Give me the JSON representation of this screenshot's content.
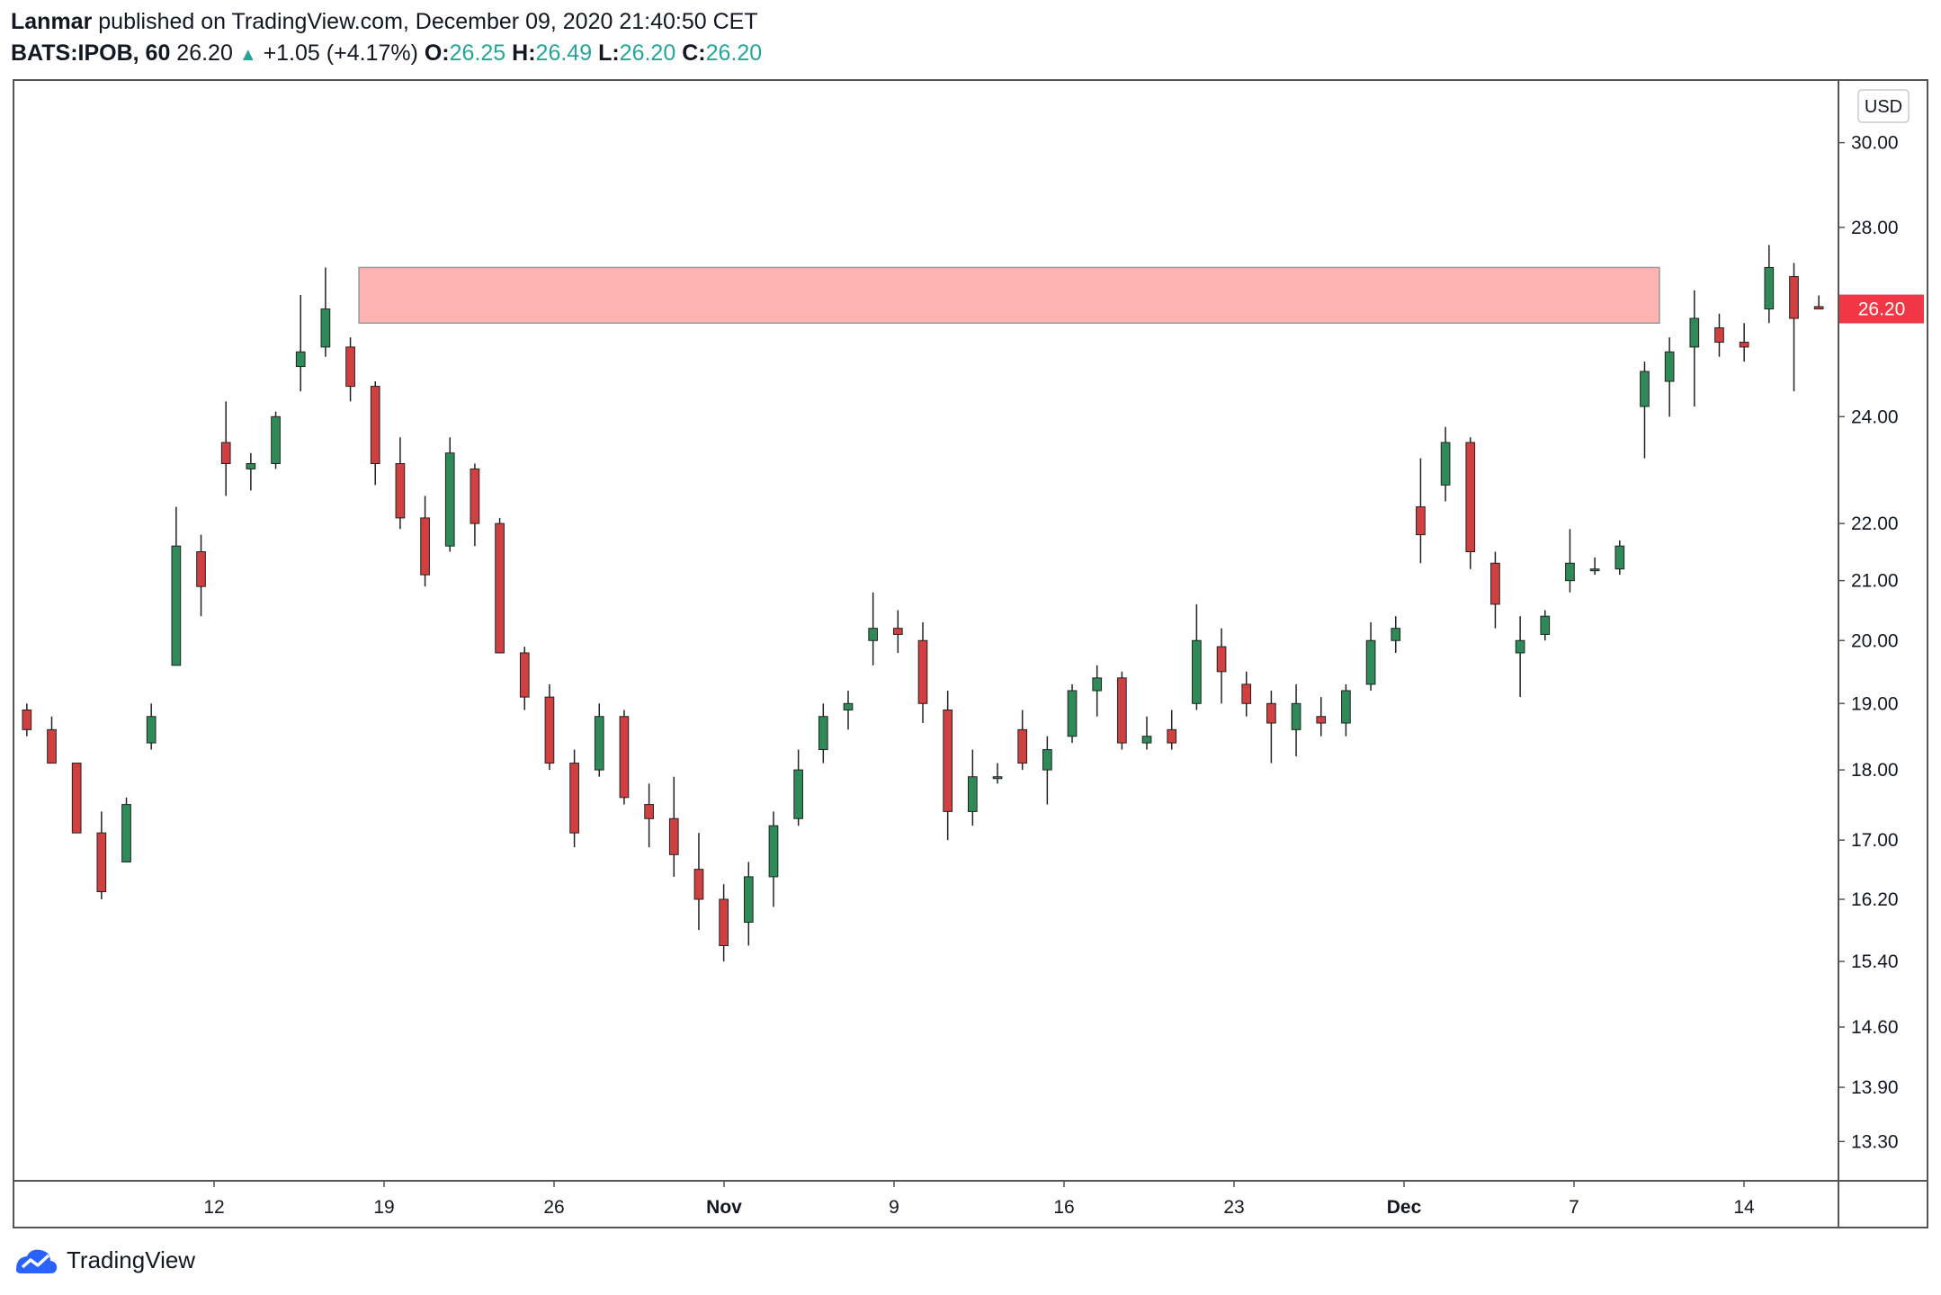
{
  "header": {
    "author": "Lanmar",
    "published": "published on TradingView.com, December 09, 2020 21:40:50 CET",
    "symbol": "BATS:IPOB, 60",
    "last": "26.20",
    "change": "+1.05 (+4.17%)",
    "o_label": "O:",
    "o_value": "26.25",
    "h_label": "H:",
    "h_value": "26.49",
    "l_label": "L:",
    "l_value": "26.20",
    "c_label": "C:",
    "c_value": "26.20"
  },
  "currency_button": "USD",
  "last_price_label": "26.20",
  "footer": {
    "brand": "TradingView"
  },
  "chart_data": {
    "type": "candlestick",
    "symbol": "BATS:IPOB",
    "interval": "60",
    "y_scale": "log",
    "ylim": [
      12.9,
      31.5
    ],
    "y_ticks": [
      "30.00",
      "28.00",
      "24.00",
      "22.00",
      "21.00",
      "20.00",
      "19.00",
      "18.00",
      "17.00",
      "16.20",
      "15.40",
      "14.60",
      "13.90",
      "13.30"
    ],
    "x_ticks": [
      "12",
      "19",
      "26",
      "Nov",
      "9",
      "16",
      "23",
      "Dec",
      "7",
      "14"
    ],
    "last_price": 26.2,
    "zone": {
      "low": 25.9,
      "high": 27.1,
      "color": "#ffb3b3",
      "start": "Oct 13",
      "end": "Dec 11"
    },
    "colors": {
      "up": "#26a69a",
      "down": "#ef5350",
      "body_up": "#2e8b57",
      "body_down": "#d04040",
      "label_bg": "#f23645"
    },
    "series": [
      {
        "date": "Oct 6",
        "open": 18.9,
        "high": 19.0,
        "low": 18.5,
        "close": 18.6
      },
      {
        "date": "Oct 7",
        "open": 18.6,
        "high": 18.8,
        "low": 18.2,
        "close": 18.1
      },
      {
        "date": "Oct 8",
        "open": 18.1,
        "high": 18.1,
        "low": 17.2,
        "close": 17.1
      },
      {
        "date": "Oct 9",
        "open": 17.1,
        "high": 17.4,
        "low": 16.2,
        "close": 16.3
      },
      {
        "date": "Oct 12",
        "open": 16.7,
        "high": 17.6,
        "low": 16.7,
        "close": 17.5
      },
      {
        "date": "Oct 13",
        "open": 18.4,
        "high": 19.0,
        "low": 18.3,
        "close": 18.8
      },
      {
        "date": "Oct 14",
        "open": 19.6,
        "high": 22.3,
        "low": 19.6,
        "close": 21.6
      },
      {
        "date": "Oct 15",
        "open": 21.5,
        "high": 21.8,
        "low": 20.4,
        "close": 20.9
      },
      {
        "date": "Oct 16",
        "open": 23.5,
        "high": 24.3,
        "low": 22.5,
        "close": 23.1
      },
      {
        "date": "Oct 19",
        "open": 23.0,
        "high": 23.3,
        "low": 22.6,
        "close": 23.1
      },
      {
        "date": "Oct 20",
        "open": 23.1,
        "high": 24.1,
        "low": 23.0,
        "close": 24.0
      },
      {
        "date": "Oct 21",
        "open": 25.0,
        "high": 26.5,
        "low": 24.5,
        "close": 25.3
      },
      {
        "date": "Oct 22",
        "open": 25.4,
        "high": 27.1,
        "low": 25.2,
        "close": 26.2
      },
      {
        "date": "Oct 23",
        "open": 25.4,
        "high": 25.6,
        "low": 24.3,
        "close": 24.6
      },
      {
        "date": "Oct 26",
        "open": 24.6,
        "high": 24.7,
        "low": 22.7,
        "close": 23.1
      },
      {
        "date": "Oct 27",
        "open": 23.1,
        "high": 23.6,
        "low": 21.9,
        "close": 22.1
      },
      {
        "date": "Oct 28",
        "open": 22.1,
        "high": 22.5,
        "low": 20.9,
        "close": 21.1
      },
      {
        "date": "Oct 29",
        "open": 21.6,
        "high": 23.6,
        "low": 21.5,
        "close": 23.3
      },
      {
        "date": "Oct 30",
        "open": 23.0,
        "high": 23.1,
        "low": 21.6,
        "close": 22.0
      },
      {
        "date": "Nov 2",
        "open": 22.0,
        "high": 22.1,
        "low": 20.0,
        "close": 19.8
      },
      {
        "date": "Nov 3",
        "open": 19.8,
        "high": 19.9,
        "low": 18.9,
        "close": 19.1
      },
      {
        "date": "Nov 4",
        "open": 19.1,
        "high": 19.3,
        "low": 18.0,
        "close": 18.1
      },
      {
        "date": "Nov 5",
        "open": 18.1,
        "high": 18.3,
        "low": 16.9,
        "close": 17.1
      },
      {
        "date": "Nov 6",
        "open": 18.0,
        "high": 19.0,
        "low": 17.9,
        "close": 18.8
      },
      {
        "date": "Nov 9",
        "open": 18.8,
        "high": 18.9,
        "low": 17.5,
        "close": 17.6
      },
      {
        "date": "Nov 10",
        "open": 17.5,
        "high": 17.8,
        "low": 16.9,
        "close": 17.3
      },
      {
        "date": "Nov 11",
        "open": 17.3,
        "high": 17.9,
        "low": 16.5,
        "close": 16.8
      },
      {
        "date": "Nov 12",
        "open": 16.6,
        "high": 17.1,
        "low": 15.8,
        "close": 16.2
      },
      {
        "date": "Nov 13",
        "open": 16.2,
        "high": 16.4,
        "low": 15.4,
        "close": 15.6
      },
      {
        "date": "Nov 16",
        "open": 15.9,
        "high": 16.7,
        "low": 15.6,
        "close": 16.5
      },
      {
        "date": "Nov 17",
        "open": 16.5,
        "high": 17.4,
        "low": 16.1,
        "close": 17.2
      },
      {
        "date": "Nov 18",
        "open": 17.3,
        "high": 18.3,
        "low": 17.2,
        "close": 18.0
      },
      {
        "date": "Nov 19",
        "open": 18.3,
        "high": 19.0,
        "low": 18.1,
        "close": 18.8
      },
      {
        "date": "Nov 20",
        "open": 18.9,
        "high": 19.2,
        "low": 18.6,
        "close": 19.0
      },
      {
        "date": "Nov 23",
        "open": 20.0,
        "high": 20.8,
        "low": 19.6,
        "close": 20.2
      },
      {
        "date": "Nov 24",
        "open": 20.2,
        "high": 20.5,
        "low": 19.8,
        "close": 20.1
      },
      {
        "date": "Nov 25",
        "open": 20.0,
        "high": 20.3,
        "low": 18.7,
        "close": 19.0
      },
      {
        "date": "Nov 27",
        "open": 18.9,
        "high": 19.2,
        "low": 17.0,
        "close": 17.4
      },
      {
        "date": "Nov 30",
        "open": 17.4,
        "high": 18.3,
        "low": 17.2,
        "close": 17.9
      },
      {
        "date": "Dec 1",
        "open": 17.9,
        "high": 18.1,
        "low": 17.8,
        "close": 17.9
      },
      {
        "date": "Dec 2",
        "open": 18.6,
        "high": 18.9,
        "low": 18.0,
        "close": 18.1
      },
      {
        "date": "Dec 3",
        "open": 18.0,
        "high": 18.5,
        "low": 17.5,
        "close": 18.3
      },
      {
        "date": "Dec 4",
        "open": 18.5,
        "high": 19.3,
        "low": 18.4,
        "close": 19.2
      },
      {
        "date": "Dec 7",
        "open": 19.2,
        "high": 19.6,
        "low": 18.8,
        "close": 19.4
      },
      {
        "date": "Dec 8",
        "open": 19.4,
        "high": 19.5,
        "low": 18.3,
        "close": 18.4
      },
      {
        "date": "Dec 9",
        "open": 18.4,
        "high": 18.8,
        "low": 18.3,
        "close": 18.5
      },
      {
        "date": "Dec 10",
        "open": 18.6,
        "high": 18.9,
        "low": 18.3,
        "close": 18.4
      },
      {
        "date": "Dec 11",
        "open": 19.0,
        "high": 20.6,
        "low": 18.9,
        "close": 20.0
      },
      {
        "date": "Dec 14",
        "open": 19.9,
        "high": 20.2,
        "low": 19.0,
        "close": 19.5
      },
      {
        "date": "Dec 15",
        "open": 19.3,
        "high": 19.5,
        "low": 18.8,
        "close": 19.0
      },
      {
        "date": "Dec 16",
        "open": 19.0,
        "high": 19.2,
        "low": 18.1,
        "close": 18.7
      },
      {
        "date": "Dec 17",
        "open": 18.6,
        "high": 19.3,
        "low": 18.2,
        "close": 19.0
      },
      {
        "date": "Dec 18",
        "open": 18.8,
        "high": 19.1,
        "low": 18.5,
        "close": 18.7
      },
      {
        "date": "Dec 21",
        "open": 18.7,
        "high": 19.3,
        "low": 18.5,
        "close": 19.2
      },
      {
        "date": "Dec 22",
        "open": 19.3,
        "high": 20.3,
        "low": 19.2,
        "close": 20.0
      },
      {
        "date": "Dec 23",
        "open": 20.0,
        "high": 20.4,
        "low": 19.8,
        "close": 20.2
      },
      {
        "date": "Dec 24",
        "open": 22.3,
        "high": 23.2,
        "low": 21.3,
        "close": 21.8
      },
      {
        "date": "Dec 25",
        "open": 22.7,
        "high": 23.8,
        "low": 22.4,
        "close": 23.5
      },
      {
        "date": "Dec 26",
        "open": 23.5,
        "high": 23.6,
        "low": 21.2,
        "close": 21.5
      },
      {
        "date": "Dec 27",
        "open": 21.3,
        "high": 21.5,
        "low": 20.2,
        "close": 20.6
      },
      {
        "date": "Dec 28",
        "open": 19.8,
        "high": 20.4,
        "low": 19.1,
        "close": 20.0
      },
      {
        "date": "Dec 29",
        "open": 20.1,
        "high": 20.5,
        "low": 20.0,
        "close": 20.4
      },
      {
        "date": "Dec 30",
        "open": 21.0,
        "high": 21.9,
        "low": 20.8,
        "close": 21.3
      },
      {
        "date": "Dec 31",
        "open": 21.2,
        "high": 21.4,
        "low": 21.1,
        "close": 21.2
      },
      {
        "date": "Jan 1",
        "open": 21.2,
        "high": 21.7,
        "low": 21.1,
        "close": 21.6
      },
      {
        "date": "Jan 4",
        "open": 24.2,
        "high": 25.1,
        "low": 23.2,
        "close": 24.9
      },
      {
        "date": "Jan 5",
        "open": 24.7,
        "high": 25.6,
        "low": 24.0,
        "close": 25.3
      },
      {
        "date": "Jan 6",
        "open": 25.4,
        "high": 26.6,
        "low": 24.2,
        "close": 26.0
      },
      {
        "date": "Jan 7",
        "open": 25.8,
        "high": 26.1,
        "low": 25.2,
        "close": 25.5
      },
      {
        "date": "Jan 8",
        "open": 25.5,
        "high": 25.9,
        "low": 25.1,
        "close": 25.4
      },
      {
        "date": "Jan 11",
        "open": 26.2,
        "high": 27.6,
        "low": 25.9,
        "close": 27.1
      },
      {
        "date": "Jan 12",
        "open": 26.9,
        "high": 27.2,
        "low": 24.5,
        "close": 26.0
      },
      {
        "date": "Jan 13",
        "open": 26.25,
        "high": 26.49,
        "low": 26.2,
        "close": 26.2
      }
    ]
  }
}
